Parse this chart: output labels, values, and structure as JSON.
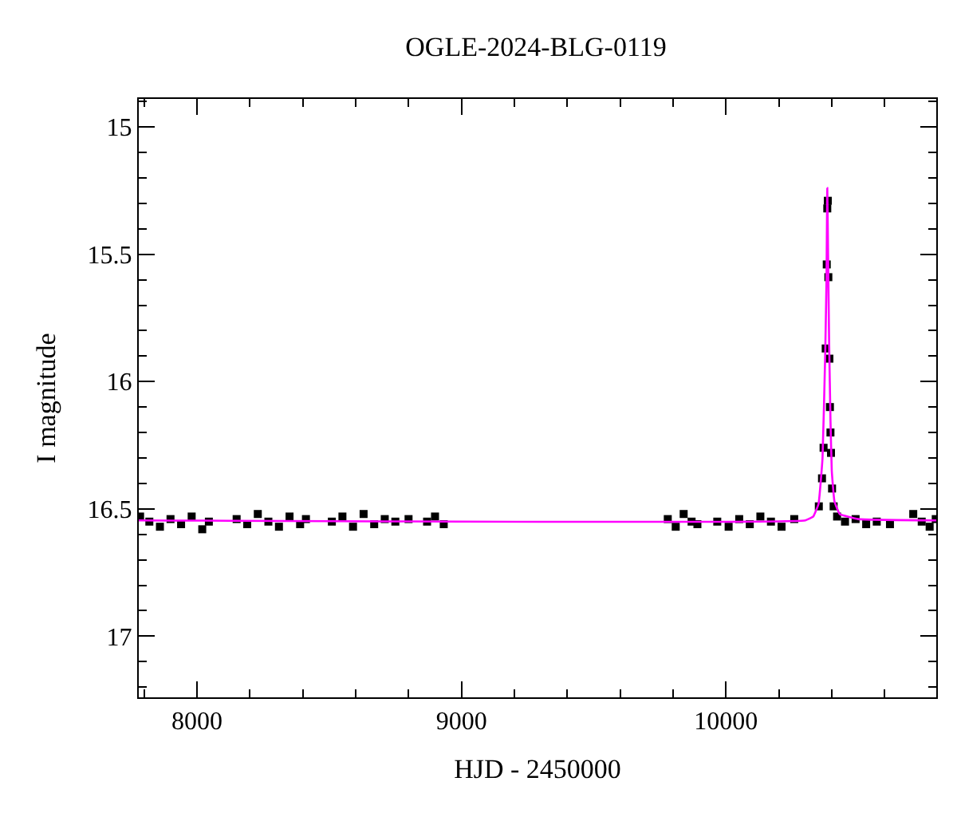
{
  "chart_data": {
    "type": "scatter",
    "title": "OGLE-2024-BLG-0119",
    "xlabel": "HJD - 2450000",
    "ylabel": "I magnitude",
    "xlim": [
      7780,
      10795
    ],
    "ylim": [
      17.24,
      14.89
    ],
    "xticks": [
      {
        "value": 7800,
        "label": null
      },
      8000,
      {
        "value": 8200,
        "label": null
      },
      {
        "value": 8400,
        "label": null
      },
      {
        "value": 8600,
        "label": null
      },
      {
        "value": 8800,
        "label": null
      },
      9000,
      {
        "value": 9200,
        "label": null
      },
      {
        "value": 9400,
        "label": null
      },
      {
        "value": 9600,
        "label": null
      },
      {
        "value": 9800,
        "label": null
      },
      10000,
      {
        "value": 10200,
        "label": null
      },
      {
        "value": 10400,
        "label": null
      },
      {
        "value": 10600,
        "label": null
      }
    ],
    "yticks": [
      {
        "value": 14.9,
        "label": null
      },
      15,
      {
        "value": 15.1,
        "label": null
      },
      {
        "value": 15.2,
        "label": null
      },
      {
        "value": 15.3,
        "label": null
      },
      {
        "value": 15.4,
        "label": null
      },
      15.5,
      {
        "value": 15.6,
        "label": null
      },
      {
        "value": 15.7,
        "label": null
      },
      {
        "value": 15.8,
        "label": null
      },
      {
        "value": 15.9,
        "label": null
      },
      16,
      {
        "value": 16.1,
        "label": null
      },
      {
        "value": 16.2,
        "label": null
      },
      {
        "value": 16.3,
        "label": null
      },
      {
        "value": 16.4,
        "label": null
      },
      16.5,
      {
        "value": 16.6,
        "label": null
      },
      {
        "value": 16.7,
        "label": null
      },
      {
        "value": 16.8,
        "label": null
      },
      {
        "value": 16.9,
        "label": null
      },
      17,
      {
        "value": 17.1,
        "label": null
      },
      {
        "value": 17.2,
        "label": null
      }
    ],
    "series": [
      {
        "marker": "square",
        "color": "#000000",
        "x": [
          7785,
          7820,
          7860,
          7900,
          7940,
          7980,
          8020,
          8045,
          8150,
          8190,
          8230,
          8270,
          8310,
          8350,
          8390,
          8412,
          8510,
          8550,
          8590,
          8630,
          8670,
          8710,
          8750,
          8800,
          8870,
          8900,
          8933,
          9780,
          9810,
          9840,
          9870,
          9892,
          9967,
          10010,
          10050,
          10090,
          10130,
          10170,
          10210,
          10258,
          10351,
          10363,
          10369,
          10377,
          10381,
          10383,
          10385,
          10387,
          10391,
          10393,
          10395,
          10397,
          10401,
          10407,
          10420,
          10450,
          10490,
          10530,
          10570,
          10620,
          10708,
          10740,
          10770,
          10793
        ],
        "values": [
          16.53,
          16.55,
          16.57,
          16.54,
          16.56,
          16.53,
          16.58,
          16.55,
          16.54,
          16.56,
          16.52,
          16.55,
          16.57,
          16.53,
          16.56,
          16.54,
          16.55,
          16.53,
          16.57,
          16.52,
          16.56,
          16.54,
          16.55,
          16.54,
          16.55,
          16.53,
          16.56,
          16.54,
          16.57,
          16.52,
          16.55,
          16.56,
          16.55,
          16.57,
          16.54,
          16.56,
          16.53,
          16.55,
          16.57,
          16.54,
          16.49,
          16.38,
          16.26,
          15.87,
          15.54,
          15.32,
          15.29,
          15.59,
          15.91,
          16.1,
          16.2,
          16.28,
          16.42,
          16.49,
          16.53,
          16.55,
          16.54,
          16.56,
          16.55,
          16.56,
          16.52,
          16.55,
          16.57,
          16.54
        ]
      },
      {
        "type": "line",
        "marker": "none",
        "color": "#ff00ff",
        "x": [
          7780,
          10300,
          10330,
          10350,
          10365,
          10375,
          10380,
          10383,
          10386,
          10390,
          10395,
          10400,
          10410,
          10430,
          10500,
          10795
        ],
        "values": [
          16.545,
          16.545,
          16.53,
          16.48,
          16.3,
          15.9,
          15.6,
          15.24,
          15.5,
          15.85,
          16.15,
          16.35,
          16.47,
          16.52,
          16.54,
          16.545
        ]
      }
    ]
  }
}
